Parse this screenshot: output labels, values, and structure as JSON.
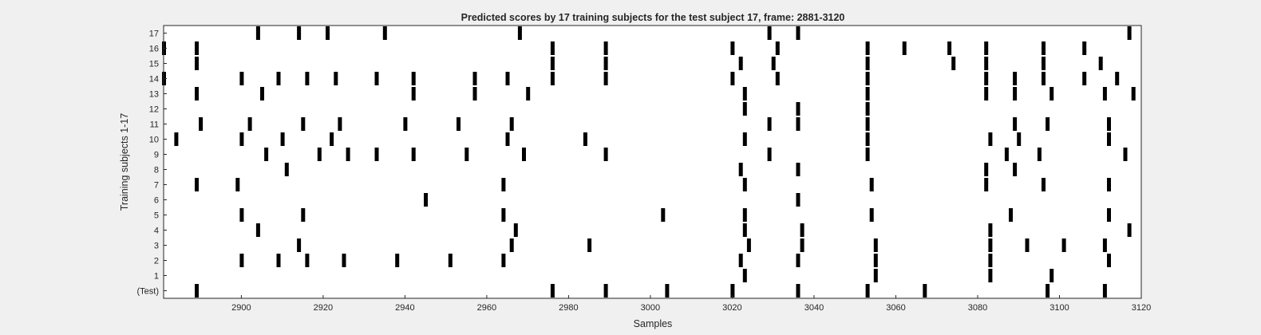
{
  "chart_data": {
    "type": "event-raster",
    "title": "Predicted scores by 17 training subjects for the test subject 17, frame: 2881-3120",
    "xlabel": "Samples",
    "ylabel": "Training subjects 1-17",
    "xlim": [
      2881,
      3120
    ],
    "x_ticks": [
      2900,
      2920,
      2940,
      2960,
      2980,
      3000,
      3020,
      3040,
      3060,
      3080,
      3100,
      3120
    ],
    "y_tick_labels": [
      "(Test)",
      "1",
      "2",
      "3",
      "4",
      "5",
      "6",
      "7",
      "8",
      "9",
      "10",
      "11",
      "12",
      "13",
      "14",
      "15",
      "16",
      "17"
    ],
    "grid": false,
    "rows": [
      {
        "label": "(Test)",
        "events": [
          2889,
          2976,
          2989,
          3004,
          3020,
          3036,
          3053,
          3067,
          3097,
          3111
        ]
      },
      {
        "label": "1",
        "events": [
          3023,
          3055,
          3083,
          3098
        ]
      },
      {
        "label": "2",
        "events": [
          2900,
          2909,
          2916,
          2925,
          2938,
          2951,
          2964,
          3022,
          3036,
          3055,
          3083,
          3112
        ]
      },
      {
        "label": "3",
        "events": [
          2914,
          2966,
          2985,
          3024,
          3037,
          3055,
          3083,
          3092,
          3101,
          3111
        ]
      },
      {
        "label": "4",
        "events": [
          2904,
          2967,
          3023,
          3037,
          3083,
          3117
        ]
      },
      {
        "label": "5",
        "events": [
          2900,
          2915,
          2964,
          3003,
          3023,
          3054,
          3088,
          3112
        ]
      },
      {
        "label": "6",
        "events": [
          2945,
          3036
        ]
      },
      {
        "label": "7",
        "events": [
          2889,
          2899,
          2964,
          3023,
          3054,
          3082,
          3096,
          3112
        ]
      },
      {
        "label": "8",
        "events": [
          2911,
          3022,
          3036,
          3082,
          3089
        ]
      },
      {
        "label": "9",
        "events": [
          2906,
          2919,
          2926,
          2933,
          2942,
          2955,
          2969,
          2989,
          3029,
          3053,
          3087,
          3095,
          3116
        ]
      },
      {
        "label": "10",
        "events": [
          2884,
          2900,
          2910,
          2922,
          2965,
          2984,
          3023,
          3053,
          3083,
          3090,
          3112
        ]
      },
      {
        "label": "11",
        "events": [
          2890,
          2902,
          2915,
          2924,
          2940,
          2953,
          2966,
          3029,
          3036,
          3053,
          3089,
          3097,
          3112
        ]
      },
      {
        "label": "12",
        "events": [
          3023,
          3036,
          3053
        ]
      },
      {
        "label": "13",
        "events": [
          2889,
          2905,
          2942,
          2957,
          2970,
          3023,
          3053,
          3082,
          3089,
          3098,
          3111,
          3118
        ]
      },
      {
        "label": "14",
        "events": [
          2881,
          2900,
          2909,
          2916,
          2923,
          2933,
          2942,
          2957,
          2965,
          2976,
          2989,
          3020,
          3031,
          3053,
          3082,
          3089,
          3096,
          3106,
          3114
        ]
      },
      {
        "label": "15",
        "events": [
          2889,
          2976,
          2989,
          3022,
          3030,
          3053,
          3074,
          3082,
          3096,
          3110
        ]
      },
      {
        "label": "16",
        "events": [
          2881,
          2889,
          2976,
          2989,
          3020,
          3031,
          3053,
          3062,
          3073,
          3082,
          3096,
          3106
        ]
      },
      {
        "label": "17",
        "events": [
          2904,
          2914,
          2921,
          2935,
          2968,
          3029,
          3036,
          3117
        ]
      }
    ],
    "mark_color": "#000000",
    "background_color": "#ffffff",
    "figure_color": "#f0f0f0"
  }
}
